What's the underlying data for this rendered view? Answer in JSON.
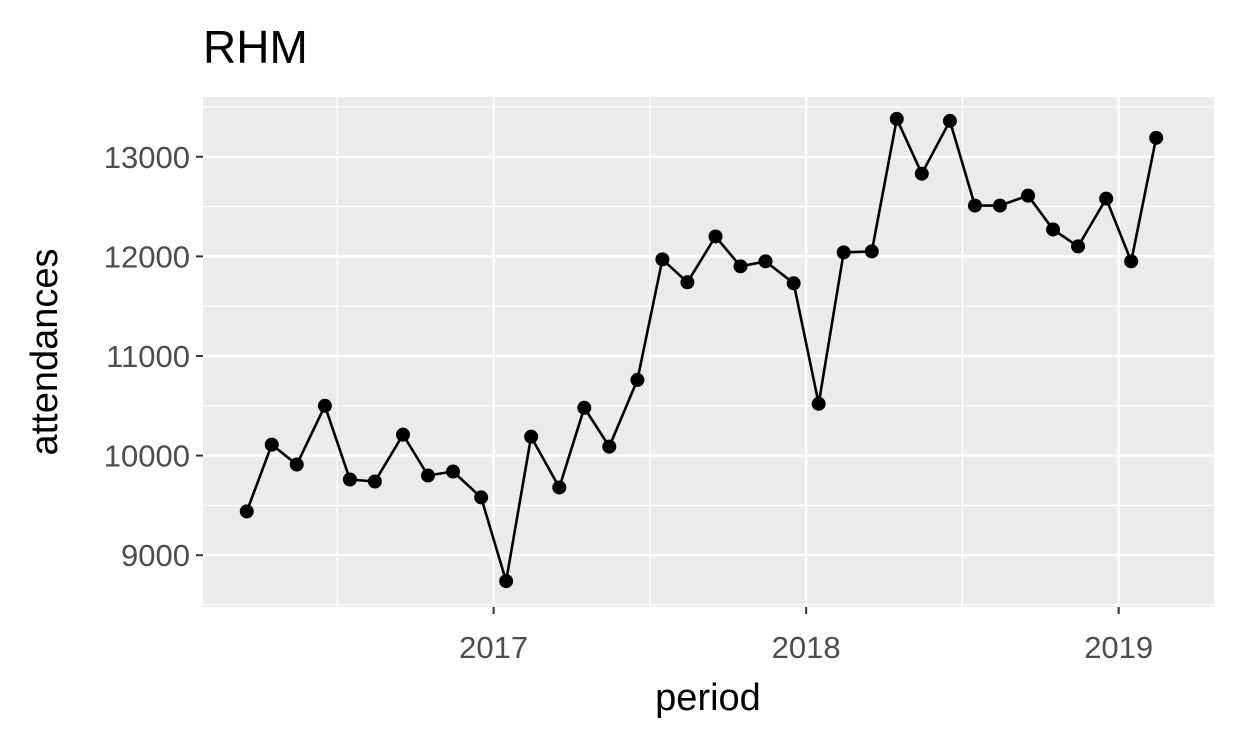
{
  "chart_data": {
    "type": "line",
    "title": "RHM",
    "xlabel": "period",
    "ylabel": "attendances",
    "xlim": [
      2016.07,
      2019.305
    ],
    "ylim": [
      8480,
      13600
    ],
    "x_ticks": [
      {
        "value": 2017.0,
        "label": "2017"
      },
      {
        "value": 2018.0,
        "label": "2018"
      },
      {
        "value": 2019.0,
        "label": "2019"
      }
    ],
    "x_minor_ticks": [
      2016.5,
      2017.5,
      2018.5
    ],
    "y_ticks": [
      {
        "value": 9000,
        "label": "9000"
      },
      {
        "value": 10000,
        "label": "10000"
      },
      {
        "value": 11000,
        "label": "11000"
      },
      {
        "value": 12000,
        "label": "12000"
      },
      {
        "value": 13000,
        "label": "13000"
      }
    ],
    "y_minor_ticks": [
      8500,
      9500,
      10500,
      11500,
      12500,
      13500
    ],
    "series": [
      {
        "name": "attendances",
        "color": "#000000",
        "points": [
          {
            "x": 2016.21,
            "y": 9440
          },
          {
            "x": 2016.29,
            "y": 10110
          },
          {
            "x": 2016.37,
            "y": 9910
          },
          {
            "x": 2016.46,
            "y": 10500
          },
          {
            "x": 2016.54,
            "y": 9760
          },
          {
            "x": 2016.62,
            "y": 9740
          },
          {
            "x": 2016.71,
            "y": 10210
          },
          {
            "x": 2016.79,
            "y": 9800
          },
          {
            "x": 2016.87,
            "y": 9840
          },
          {
            "x": 2016.96,
            "y": 9580
          },
          {
            "x": 2017.04,
            "y": 8740
          },
          {
            "x": 2017.12,
            "y": 10190
          },
          {
            "x": 2017.21,
            "y": 9680
          },
          {
            "x": 2017.29,
            "y": 10480
          },
          {
            "x": 2017.37,
            "y": 10090
          },
          {
            "x": 2017.46,
            "y": 10760
          },
          {
            "x": 2017.54,
            "y": 11970
          },
          {
            "x": 2017.62,
            "y": 11740
          },
          {
            "x": 2017.71,
            "y": 12200
          },
          {
            "x": 2017.79,
            "y": 11900
          },
          {
            "x": 2017.87,
            "y": 11950
          },
          {
            "x": 2017.96,
            "y": 11730
          },
          {
            "x": 2018.04,
            "y": 10520
          },
          {
            "x": 2018.12,
            "y": 12040
          },
          {
            "x": 2018.21,
            "y": 12050
          },
          {
            "x": 2018.29,
            "y": 13380
          },
          {
            "x": 2018.37,
            "y": 12830
          },
          {
            "x": 2018.46,
            "y": 13360
          },
          {
            "x": 2018.54,
            "y": 12510
          },
          {
            "x": 2018.62,
            "y": 12510
          },
          {
            "x": 2018.71,
            "y": 12610
          },
          {
            "x": 2018.79,
            "y": 12270
          },
          {
            "x": 2018.87,
            "y": 12100
          },
          {
            "x": 2018.96,
            "y": 12580
          },
          {
            "x": 2019.04,
            "y": 11950
          },
          {
            "x": 2019.12,
            "y": 13190
          }
        ]
      }
    ]
  },
  "colors": {
    "panel_background": "#ebebeb",
    "grid_major": "#ffffff",
    "grid_minor": "#ffffff",
    "axis_tick": "#333333",
    "tick_label": "#4d4d4d",
    "series": "#000000"
  }
}
